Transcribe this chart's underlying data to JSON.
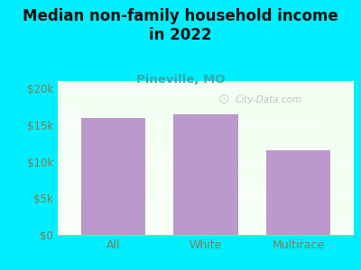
{
  "title": "Median non-family household income\nin 2022",
  "subtitle": "Pineville, MO",
  "categories": [
    "All",
    "White",
    "Multirace"
  ],
  "values": [
    16000,
    16500,
    11500
  ],
  "bar_color": "#bb99cc",
  "title_color": "#111111",
  "subtitle_color": "#33aaaa",
  "bg_color": "#00eeff",
  "yticks": [
    0,
    5000,
    10000,
    15000,
    20000
  ],
  "ytick_labels": [
    "$0",
    "$5k",
    "$10k",
    "$15k",
    "$20k"
  ],
  "ylim": [
    0,
    21000
  ],
  "watermark": "City-Data.com",
  "tick_color": "#887755",
  "title_fontsize": 12,
  "subtitle_fontsize": 9.5
}
